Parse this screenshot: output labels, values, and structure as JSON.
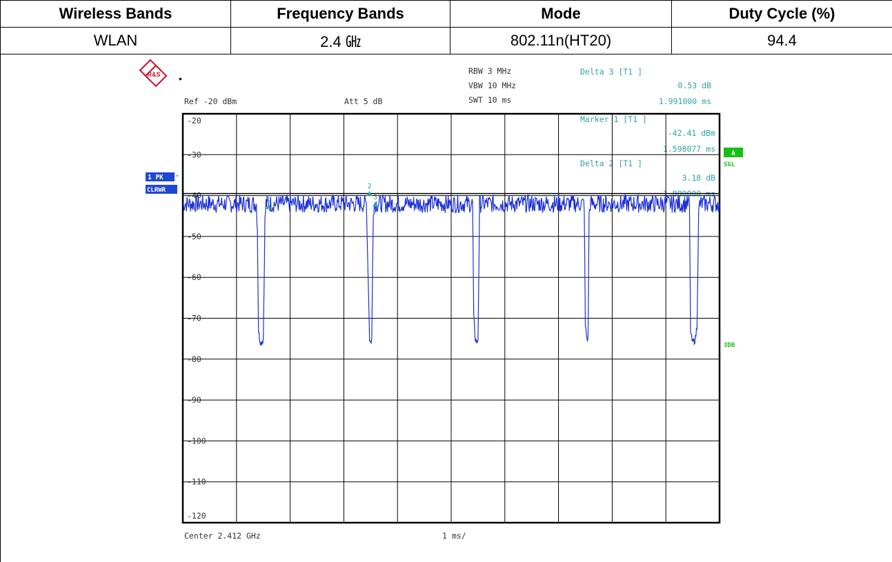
{
  "table": {
    "headers": [
      "Wireless Bands",
      "Frequency Bands",
      "Mode",
      "Duty Cycle (%)"
    ],
    "rows": [
      [
        "WLAN",
        "2.4 ㎓",
        "802.11n(HT20)",
        "94.4"
      ]
    ]
  },
  "analyzer": {
    "logo_text": "R&S",
    "ref": "Ref  -20 dBm",
    "att": "Att   5 dB",
    "rbw": "RBW  3 MHz",
    "vbw": "VBW  10 MHz",
    "swt": "SWT  10 ms",
    "delta3_title": "Delta 3 [T1 ]",
    "delta3_value": "0.53 dB",
    "delta3_time": "1.991000 ms",
    "marker1_title": "Marker 1 [T1 ]",
    "marker1_value": "-42.41 dBm",
    "marker1_time": "1.598077 ms",
    "delta2_title": "Delta 2 [T1 ]",
    "delta2_value": "3.18 dB",
    "delta2_time": "1.880000 ms",
    "trace_label_1": "1 PK",
    "trace_label_2": "CLRWR",
    "side_a": "A",
    "side_sgl": "SGL",
    "side_3db": "3DB",
    "center": "Center 2.412 GHz",
    "span_per_div": "1 ms/",
    "colors": {
      "trace": "#1a2fd6",
      "annotation": "#2fa3a8",
      "label_bg": "#1e46d8",
      "green": "#16c016"
    }
  },
  "chart_data": {
    "type": "line",
    "title": "",
    "xlabel": "Center 2.412 GHz",
    "ylabel": "",
    "xlim": [
      0,
      10
    ],
    "ylim": [
      -120,
      -20
    ],
    "x_unit": "ms",
    "y_unit": "dBm",
    "yticks": [
      -20,
      -30,
      -40,
      -50,
      -60,
      -70,
      -80,
      -90,
      -100,
      -110,
      -120
    ],
    "ytick_labels": [
      "-20",
      "-30",
      "-40",
      "-50",
      "-60",
      "-70",
      "-80",
      "-90",
      "-100",
      "-110",
      "-120"
    ],
    "grid": true,
    "series": [
      {
        "name": "1 PK",
        "x": [
          0.0,
          1.37,
          1.39,
          1.41,
          1.43,
          1.46,
          1.5,
          1.53,
          1.55,
          1.58,
          3.42,
          3.45,
          3.48,
          3.5,
          3.52,
          3.55,
          3.57,
          5.4,
          5.42,
          5.45,
          5.48,
          5.5,
          5.53,
          5.57,
          7.48,
          7.5,
          7.53,
          7.55,
          7.57,
          7.59,
          9.44,
          9.46,
          9.48,
          9.5,
          9.55,
          9.58,
          9.61,
          9.63,
          10.0
        ],
        "y": [
          -42,
          -42,
          -48,
          -73,
          -75,
          -76,
          -75,
          -46,
          -42,
          -42,
          -42,
          -58,
          -75,
          -76,
          -75,
          -43,
          -42,
          -42,
          -70,
          -75,
          -76,
          -75,
          -42,
          -42,
          -42,
          -72,
          -75,
          -75,
          -45,
          -42,
          -42,
          -73,
          -75,
          -76,
          -75,
          -72,
          -45,
          -42,
          -42
        ]
      }
    ],
    "markers": [
      {
        "label": "1",
        "x": 1.598,
        "y": -42.41
      },
      {
        "label": "2",
        "x": 3.48,
        "y": -39.2
      },
      {
        "label": "3",
        "x": 3.589,
        "y": -41.9
      }
    ]
  }
}
